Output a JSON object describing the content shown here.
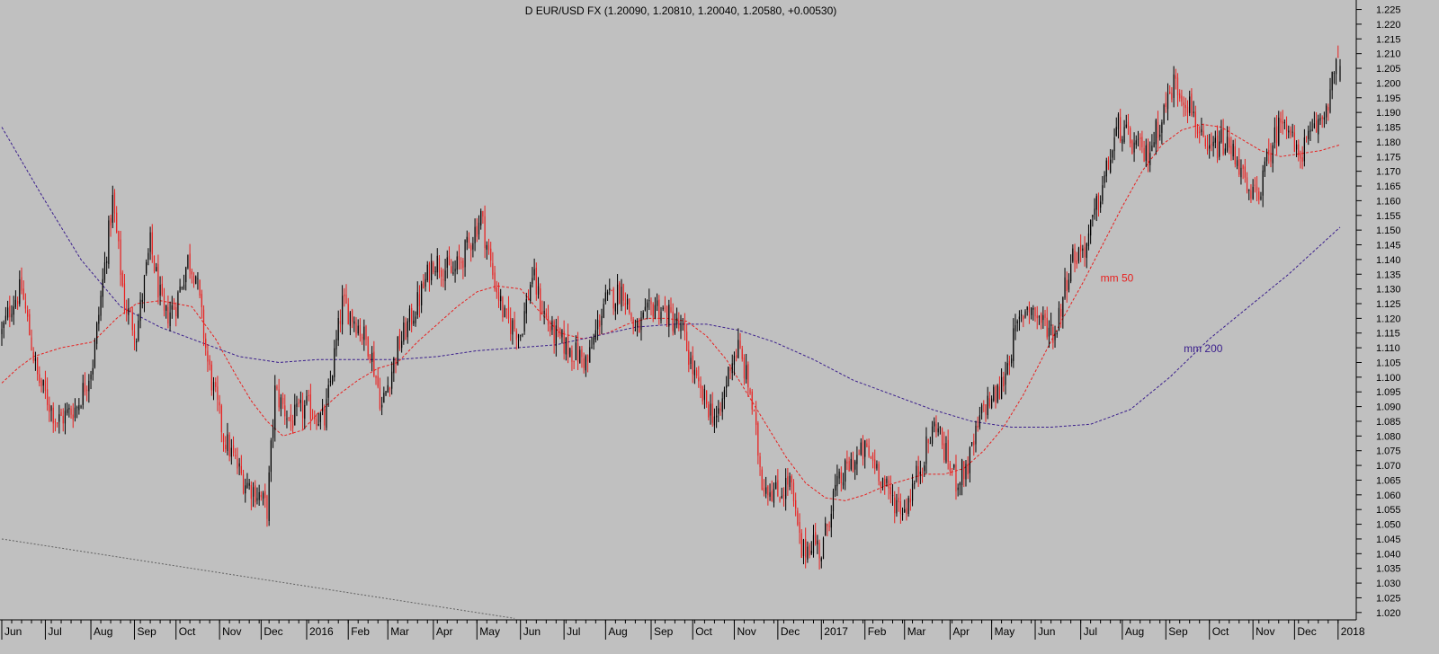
{
  "chart_data": {
    "type": "candlestick",
    "title": "D EUR/USD FX (1.20090, 1.20810, 1.20040, 1.20580, +0.00530)",
    "xlabel": "",
    "ylabel": "",
    "ylim": [
      1.0175,
      1.227
    ],
    "y_ticks": [
      "1.020",
      "1.025",
      "1.030",
      "1.035",
      "1.040",
      "1.045",
      "1.050",
      "1.055",
      "1.060",
      "1.065",
      "1.070",
      "1.075",
      "1.080",
      "1.085",
      "1.090",
      "1.095",
      "1.100",
      "1.105",
      "1.110",
      "1.115",
      "1.120",
      "1.125",
      "1.130",
      "1.135",
      "1.140",
      "1.145",
      "1.150",
      "1.155",
      "1.160",
      "1.165",
      "1.170",
      "1.175",
      "1.180",
      "1.185",
      "1.190",
      "1.195",
      "1.200",
      "1.205",
      "1.210",
      "1.215",
      "1.220",
      "1.225"
    ],
    "x_ticks": [
      {
        "label": "Jun",
        "index": 0
      },
      {
        "label": "Jul",
        "index": 22
      },
      {
        "label": "Aug",
        "index": 45
      },
      {
        "label": "Sep",
        "index": 67
      },
      {
        "label": "Oct",
        "index": 88
      },
      {
        "label": "Nov",
        "index": 110
      },
      {
        "label": "Dec",
        "index": 131
      },
      {
        "label": "2016",
        "index": 154
      },
      {
        "label": "Feb",
        "index": 175
      },
      {
        "label": "Mar",
        "index": 195
      },
      {
        "label": "Apr",
        "index": 218
      },
      {
        "label": "May",
        "index": 240
      },
      {
        "label": "Jun",
        "index": 262
      },
      {
        "label": "Jul",
        "index": 284
      },
      {
        "label": "Aug",
        "index": 305
      },
      {
        "label": "Sep",
        "index": 328
      },
      {
        "label": "Oct",
        "index": 349
      },
      {
        "label": "Nov",
        "index": 370
      },
      {
        "label": "Dec",
        "index": 392
      },
      {
        "label": "2017",
        "index": 414
      },
      {
        "label": "Feb",
        "index": 436
      },
      {
        "label": "Mar",
        "index": 456
      },
      {
        "label": "Apr",
        "index": 479
      },
      {
        "label": "May",
        "index": 500
      },
      {
        "label": "Jun",
        "index": 522
      },
      {
        "label": "Jul",
        "index": 545
      },
      {
        "label": "Aug",
        "index": 566
      },
      {
        "label": "Sep",
        "index": 588
      },
      {
        "label": "Oct",
        "index": 610
      },
      {
        "label": "Nov",
        "index": 632
      },
      {
        "label": "Dec",
        "index": 653
      },
      {
        "label": "2018",
        "index": 675
      }
    ],
    "bar_count": 677,
    "price_path": [
      [
        0,
        1.115
      ],
      [
        5,
        1.125
      ],
      [
        10,
        1.13
      ],
      [
        18,
        1.1
      ],
      [
        28,
        1.085
      ],
      [
        38,
        1.09
      ],
      [
        46,
        1.105
      ],
      [
        56,
        1.16
      ],
      [
        62,
        1.125
      ],
      [
        68,
        1.115
      ],
      [
        75,
        1.145
      ],
      [
        82,
        1.12
      ],
      [
        88,
        1.125
      ],
      [
        94,
        1.14
      ],
      [
        98,
        1.135
      ],
      [
        104,
        1.105
      ],
      [
        112,
        1.08
      ],
      [
        122,
        1.065
      ],
      [
        130,
        1.06
      ],
      [
        134,
        1.055
      ],
      [
        138,
        1.095
      ],
      [
        146,
        1.085
      ],
      [
        154,
        1.09
      ],
      [
        163,
        1.085
      ],
      [
        172,
        1.125
      ],
      [
        178,
        1.12
      ],
      [
        186,
        1.11
      ],
      [
        192,
        1.09
      ],
      [
        200,
        1.11
      ],
      [
        210,
        1.125
      ],
      [
        218,
        1.14
      ],
      [
        228,
        1.135
      ],
      [
        236,
        1.145
      ],
      [
        242,
        1.155
      ],
      [
        248,
        1.135
      ],
      [
        254,
        1.12
      ],
      [
        262,
        1.115
      ],
      [
        268,
        1.135
      ],
      [
        272,
        1.125
      ],
      [
        278,
        1.115
      ],
      [
        286,
        1.11
      ],
      [
        296,
        1.105
      ],
      [
        304,
        1.125
      ],
      [
        314,
        1.13
      ],
      [
        320,
        1.115
      ],
      [
        330,
        1.125
      ],
      [
        338,
        1.12
      ],
      [
        344,
        1.115
      ],
      [
        352,
        1.095
      ],
      [
        362,
        1.085
      ],
      [
        368,
        1.105
      ],
      [
        372,
        1.11
      ],
      [
        378,
        1.095
      ],
      [
        384,
        1.065
      ],
      [
        392,
        1.06
      ],
      [
        398,
        1.065
      ],
      [
        404,
        1.04
      ],
      [
        410,
        1.045
      ],
      [
        414,
        1.04
      ],
      [
        420,
        1.06
      ],
      [
        428,
        1.07
      ],
      [
        436,
        1.075
      ],
      [
        442,
        1.07
      ],
      [
        448,
        1.06
      ],
      [
        456,
        1.055
      ],
      [
        464,
        1.07
      ],
      [
        472,
        1.085
      ],
      [
        476,
        1.075
      ],
      [
        482,
        1.065
      ],
      [
        488,
        1.07
      ],
      [
        496,
        1.09
      ],
      [
        504,
        1.095
      ],
      [
        512,
        1.115
      ],
      [
        518,
        1.125
      ],
      [
        524,
        1.12
      ],
      [
        532,
        1.115
      ],
      [
        540,
        1.14
      ],
      [
        548,
        1.145
      ],
      [
        556,
        1.165
      ],
      [
        564,
        1.185
      ],
      [
        570,
        1.18
      ],
      [
        578,
        1.175
      ],
      [
        584,
        1.185
      ],
      [
        592,
        1.2
      ],
      [
        598,
        1.195
      ],
      [
        602,
        1.19
      ],
      [
        608,
        1.175
      ],
      [
        616,
        1.18
      ],
      [
        624,
        1.175
      ],
      [
        630,
        1.16
      ],
      [
        636,
        1.165
      ],
      [
        642,
        1.18
      ],
      [
        648,
        1.19
      ],
      [
        654,
        1.175
      ],
      [
        660,
        1.18
      ],
      [
        668,
        1.19
      ],
      [
        674,
        1.205
      ],
      [
        676,
        1.2058
      ]
    ],
    "moving_averages": [
      {
        "name": "mm 50",
        "label": "mm 50",
        "color": "#e8201f",
        "values": [
          [
            0,
            1.098
          ],
          [
            8,
            1.103
          ],
          [
            16,
            1.107
          ],
          [
            30,
            1.11
          ],
          [
            46,
            1.112
          ],
          [
            58,
            1.12
          ],
          [
            68,
            1.125
          ],
          [
            80,
            1.126
          ],
          [
            96,
            1.124
          ],
          [
            108,
            1.113
          ],
          [
            118,
            1.101
          ],
          [
            126,
            1.092
          ],
          [
            134,
            1.085
          ],
          [
            142,
            1.08
          ],
          [
            152,
            1.082
          ],
          [
            160,
            1.088
          ],
          [
            170,
            1.094
          ],
          [
            180,
            1.099
          ],
          [
            190,
            1.103
          ],
          [
            200,
            1.105
          ],
          [
            210,
            1.112
          ],
          [
            220,
            1.118
          ],
          [
            230,
            1.124
          ],
          [
            240,
            1.129
          ],
          [
            250,
            1.131
          ],
          [
            262,
            1.13
          ],
          [
            272,
            1.122
          ],
          [
            282,
            1.115
          ],
          [
            294,
            1.113
          ],
          [
            306,
            1.115
          ],
          [
            316,
            1.118
          ],
          [
            326,
            1.12
          ],
          [
            336,
            1.12
          ],
          [
            346,
            1.119
          ],
          [
            356,
            1.114
          ],
          [
            366,
            1.106
          ],
          [
            376,
            1.095
          ],
          [
            386,
            1.084
          ],
          [
            396,
            1.073
          ],
          [
            406,
            1.064
          ],
          [
            416,
            1.059
          ],
          [
            426,
            1.058
          ],
          [
            436,
            1.06
          ],
          [
            446,
            1.063
          ],
          [
            456,
            1.065
          ],
          [
            466,
            1.067
          ],
          [
            476,
            1.067
          ],
          [
            486,
            1.069
          ],
          [
            496,
            1.075
          ],
          [
            506,
            1.083
          ],
          [
            516,
            1.094
          ],
          [
            526,
            1.107
          ],
          [
            536,
            1.12
          ],
          [
            546,
            1.132
          ],
          [
            556,
            1.145
          ],
          [
            566,
            1.158
          ],
          [
            576,
            1.17
          ],
          [
            586,
            1.179
          ],
          [
            596,
            1.184
          ],
          [
            606,
            1.186
          ],
          [
            616,
            1.185
          ],
          [
            626,
            1.181
          ],
          [
            636,
            1.177
          ],
          [
            646,
            1.175
          ],
          [
            656,
            1.176
          ],
          [
            666,
            1.177
          ],
          [
            676,
            1.179
          ]
        ]
      },
      {
        "name": "mm 200",
        "label": "mm 200",
        "color": "#3a1e8c",
        "values": [
          [
            0,
            1.185
          ],
          [
            20,
            1.162
          ],
          [
            40,
            1.14
          ],
          [
            60,
            1.124
          ],
          [
            80,
            1.117
          ],
          [
            100,
            1.112
          ],
          [
            120,
            1.107
          ],
          [
            140,
            1.105
          ],
          [
            160,
            1.106
          ],
          [
            180,
            1.106
          ],
          [
            200,
            1.106
          ],
          [
            220,
            1.107
          ],
          [
            240,
            1.109
          ],
          [
            260,
            1.11
          ],
          [
            280,
            1.111
          ],
          [
            300,
            1.114
          ],
          [
            320,
            1.117
          ],
          [
            340,
            1.118
          ],
          [
            356,
            1.118
          ],
          [
            372,
            1.116
          ],
          [
            390,
            1.112
          ],
          [
            410,
            1.106
          ],
          [
            430,
            1.099
          ],
          [
            450,
            1.094
          ],
          [
            470,
            1.089
          ],
          [
            490,
            1.085
          ],
          [
            510,
            1.083
          ],
          [
            530,
            1.083
          ],
          [
            550,
            1.084
          ],
          [
            570,
            1.089
          ],
          [
            590,
            1.1
          ],
          [
            610,
            1.113
          ],
          [
            630,
            1.124
          ],
          [
            650,
            1.135
          ],
          [
            676,
            1.151
          ]
        ]
      }
    ],
    "trendline": {
      "from": [
        0,
        1.045
      ],
      "to": [
        259,
        1.018
      ]
    },
    "grid": false,
    "legend": "none (inline labels)"
  },
  "colors": {
    "background": "#c0c0c0",
    "up": "#000000",
    "down": "#e8201f",
    "ma50": "#e8201f",
    "ma200": "#3a1e8c",
    "trendline": "#606060"
  }
}
